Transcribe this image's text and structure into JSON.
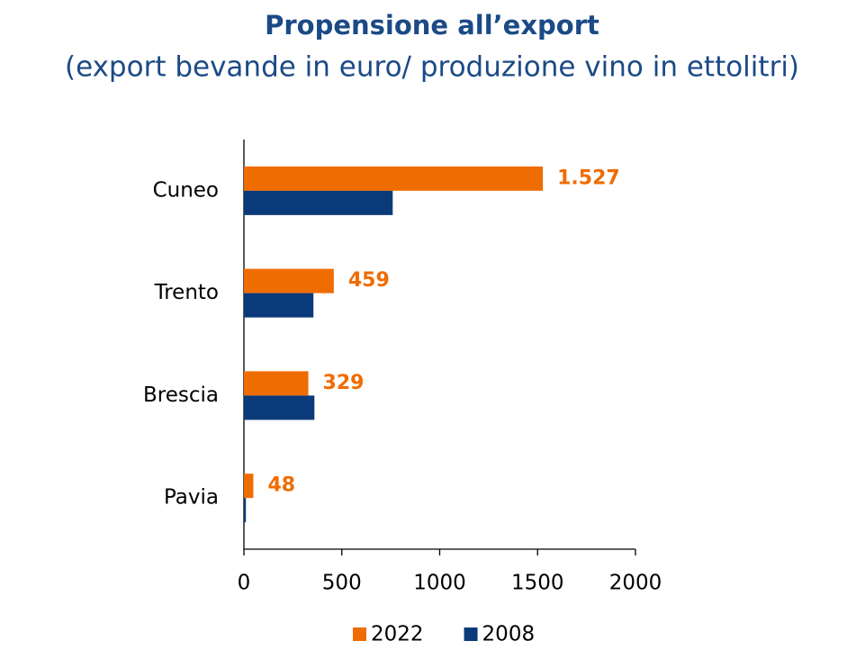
{
  "chart_data": {
    "type": "barh",
    "title": "Propensione all’export",
    "subtitle": "(export bevande in euro/ produzione vino in ettolitri)",
    "categories": [
      "Cuneo",
      "Trento",
      "Brescia",
      "Pavia"
    ],
    "series": [
      {
        "name": "2022",
        "color": "#ef6c00",
        "values": [
          1527,
          459,
          329,
          48
        ],
        "value_labels": [
          "1.527",
          "459",
          "329",
          "48"
        ]
      },
      {
        "name": "2008",
        "color": "#0b3a7a",
        "values": [
          760,
          355,
          360,
          10
        ]
      }
    ],
    "xlim": [
      0,
      2000
    ],
    "xticks": [
      0,
      500,
      1000,
      1500,
      2000
    ],
    "legend": "bottom"
  }
}
